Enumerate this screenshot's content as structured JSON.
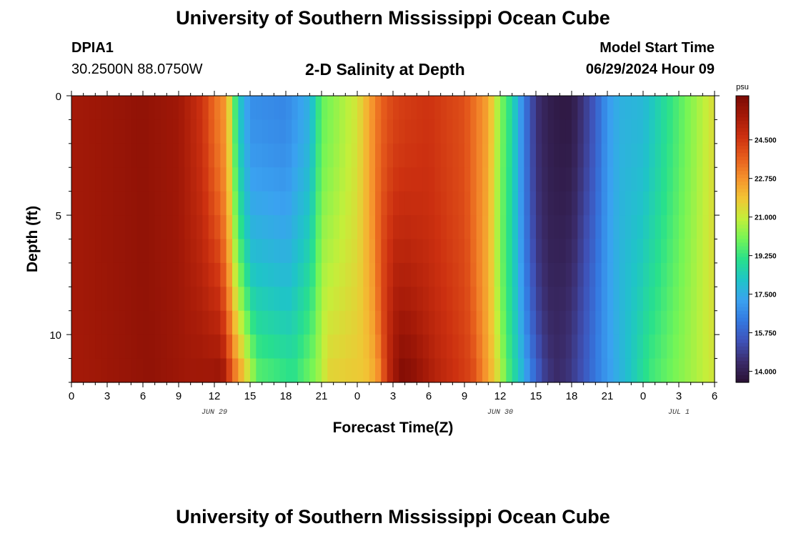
{
  "header": {
    "title": "University of Southern Mississippi Ocean Cube",
    "station_id": "DPIA1",
    "coordinates": "30.2500N  88.0750W",
    "plot_title": "2-D Salinity at Depth",
    "model_start_label": "Model Start Time",
    "model_start_value": "06/29/2024 Hour 09"
  },
  "footer": {
    "title": "University of Southern Mississippi Ocean Cube"
  },
  "chart_data": {
    "type": "heatmap",
    "xlabel": "Forecast Time(Z)",
    "ylabel": "Depth (ft)",
    "x_tick_labels": [
      "0",
      "3",
      "6",
      "9",
      "12",
      "15",
      "18",
      "21",
      "0",
      "3",
      "6",
      "9",
      "12",
      "15",
      "18",
      "21",
      "0",
      "3",
      "6"
    ],
    "x_hours": [
      0,
      3,
      6,
      9,
      12,
      15,
      18,
      21,
      24,
      27,
      30,
      33,
      36,
      39,
      42,
      45,
      48,
      51,
      54
    ],
    "xlim": [
      0,
      54
    ],
    "date_labels": [
      {
        "text": "JUN 29",
        "hour": 12
      },
      {
        "text": "JUN 30",
        "hour": 36
      },
      {
        "text": "JUL 1",
        "hour": 51
      }
    ],
    "y_tick_labels": [
      "0",
      "5",
      "10"
    ],
    "y_ticks": [
      0,
      5,
      10
    ],
    "ylim": [
      0,
      12
    ],
    "y_inverted": true,
    "colorbar": {
      "unit": "psu",
      "min": 13.5,
      "max": 26.5,
      "tick_values": [
        14.0,
        15.75,
        17.5,
        19.25,
        21.0,
        22.75,
        24.5
      ],
      "tick_labels": [
        "14.000",
        "15.750",
        "17.500",
        "19.250",
        "21.000",
        "22.750",
        "24.500"
      ],
      "colormap": [
        "#2a1133",
        "#3b2c6b",
        "#3f52b8",
        "#3478e0",
        "#3aa2f0",
        "#1fc4c8",
        "#28e08c",
        "#74f556",
        "#c4ef3a",
        "#f2c434",
        "#f5902c",
        "#e65c1c",
        "#cc3010",
        "#a51a08",
        "#7a0a04"
      ]
    },
    "series": {
      "description_hours": [
        0,
        3,
        6,
        9,
        11,
        12,
        13,
        14,
        15,
        18,
        20,
        21,
        24,
        25,
        26,
        27,
        28,
        30,
        33,
        35,
        36,
        37,
        38,
        39,
        40,
        41,
        42,
        44,
        45,
        46,
        48,
        51,
        54
      ],
      "surface_psu": [
        25.6,
        25.8,
        26.0,
        25.7,
        24.6,
        23.4,
        22.6,
        18.4,
        16.8,
        16.6,
        17.6,
        19.8,
        21.2,
        22.4,
        23.6,
        24.2,
        24.4,
        24.6,
        24.0,
        22.4,
        20.2,
        18.8,
        16.4,
        14.6,
        14.0,
        13.8,
        13.8,
        15.6,
        17.0,
        17.6,
        17.8,
        19.6,
        21.4
      ],
      "bottom_psu": [
        25.6,
        25.8,
        26.0,
        25.7,
        25.8,
        26.0,
        23.6,
        21.8,
        19.8,
        19.2,
        20.4,
        21.6,
        21.8,
        22.4,
        25.0,
        26.4,
        26.2,
        25.2,
        24.2,
        21.6,
        19.6,
        18.2,
        16.4,
        15.0,
        14.4,
        14.6,
        15.2,
        16.8,
        17.4,
        18.0,
        19.4,
        20.4,
        21.4
      ]
    }
  }
}
